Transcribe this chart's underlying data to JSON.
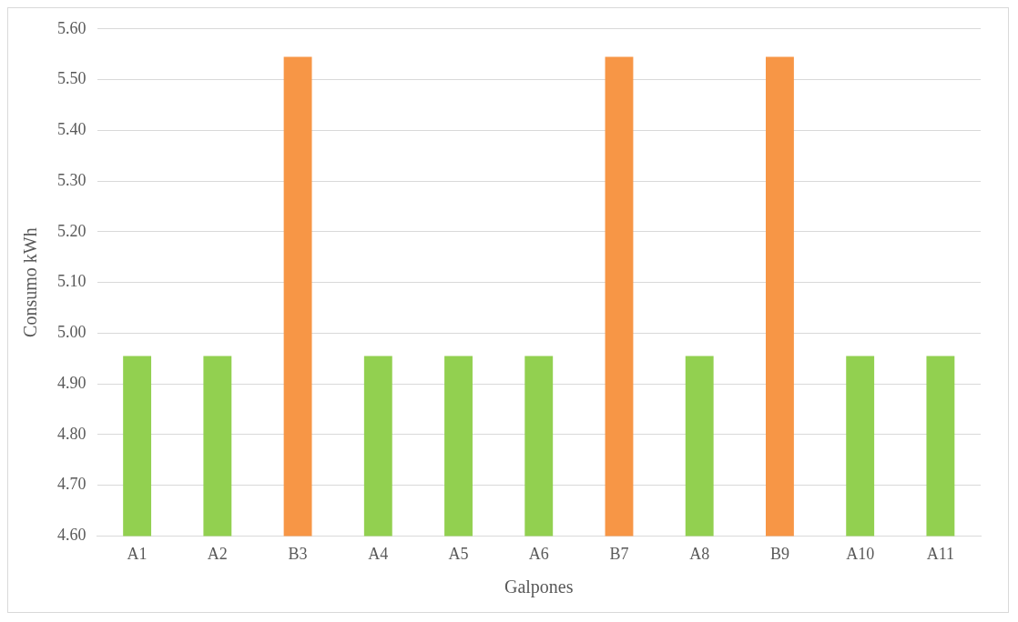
{
  "chart_data": {
    "type": "bar",
    "xlabel": "Galpones",
    "ylabel": "Consumo kWh",
    "categories": [
      "A1",
      "A2",
      "B3",
      "A4",
      "A5",
      "A6",
      "B7",
      "A8",
      "B9",
      "A10",
      "A11"
    ],
    "values": [
      4.955,
      4.955,
      5.545,
      4.955,
      4.955,
      4.955,
      5.545,
      4.955,
      5.545,
      4.955,
      4.955
    ],
    "colors": [
      "#92d050",
      "#92d050",
      "#f79646",
      "#92d050",
      "#92d050",
      "#92d050",
      "#f79646",
      "#92d050",
      "#f79646",
      "#92d050",
      "#92d050"
    ],
    "ylim": [
      4.6,
      5.6
    ],
    "yticks": [
      {
        "value": 4.6,
        "label": "4.60"
      },
      {
        "value": 4.7,
        "label": "4.70"
      },
      {
        "value": 4.8,
        "label": "4.80"
      },
      {
        "value": 4.9,
        "label": "4.90"
      },
      {
        "value": 5.0,
        "label": "5.00"
      },
      {
        "value": 5.1,
        "label": "5.10"
      },
      {
        "value": 5.2,
        "label": "5.20"
      },
      {
        "value": 5.3,
        "label": "5.30"
      },
      {
        "value": 5.4,
        "label": "5.40"
      },
      {
        "value": 5.5,
        "label": "5.50"
      },
      {
        "value": 5.6,
        "label": "5.60"
      }
    ],
    "grid": "y",
    "legend": false
  }
}
